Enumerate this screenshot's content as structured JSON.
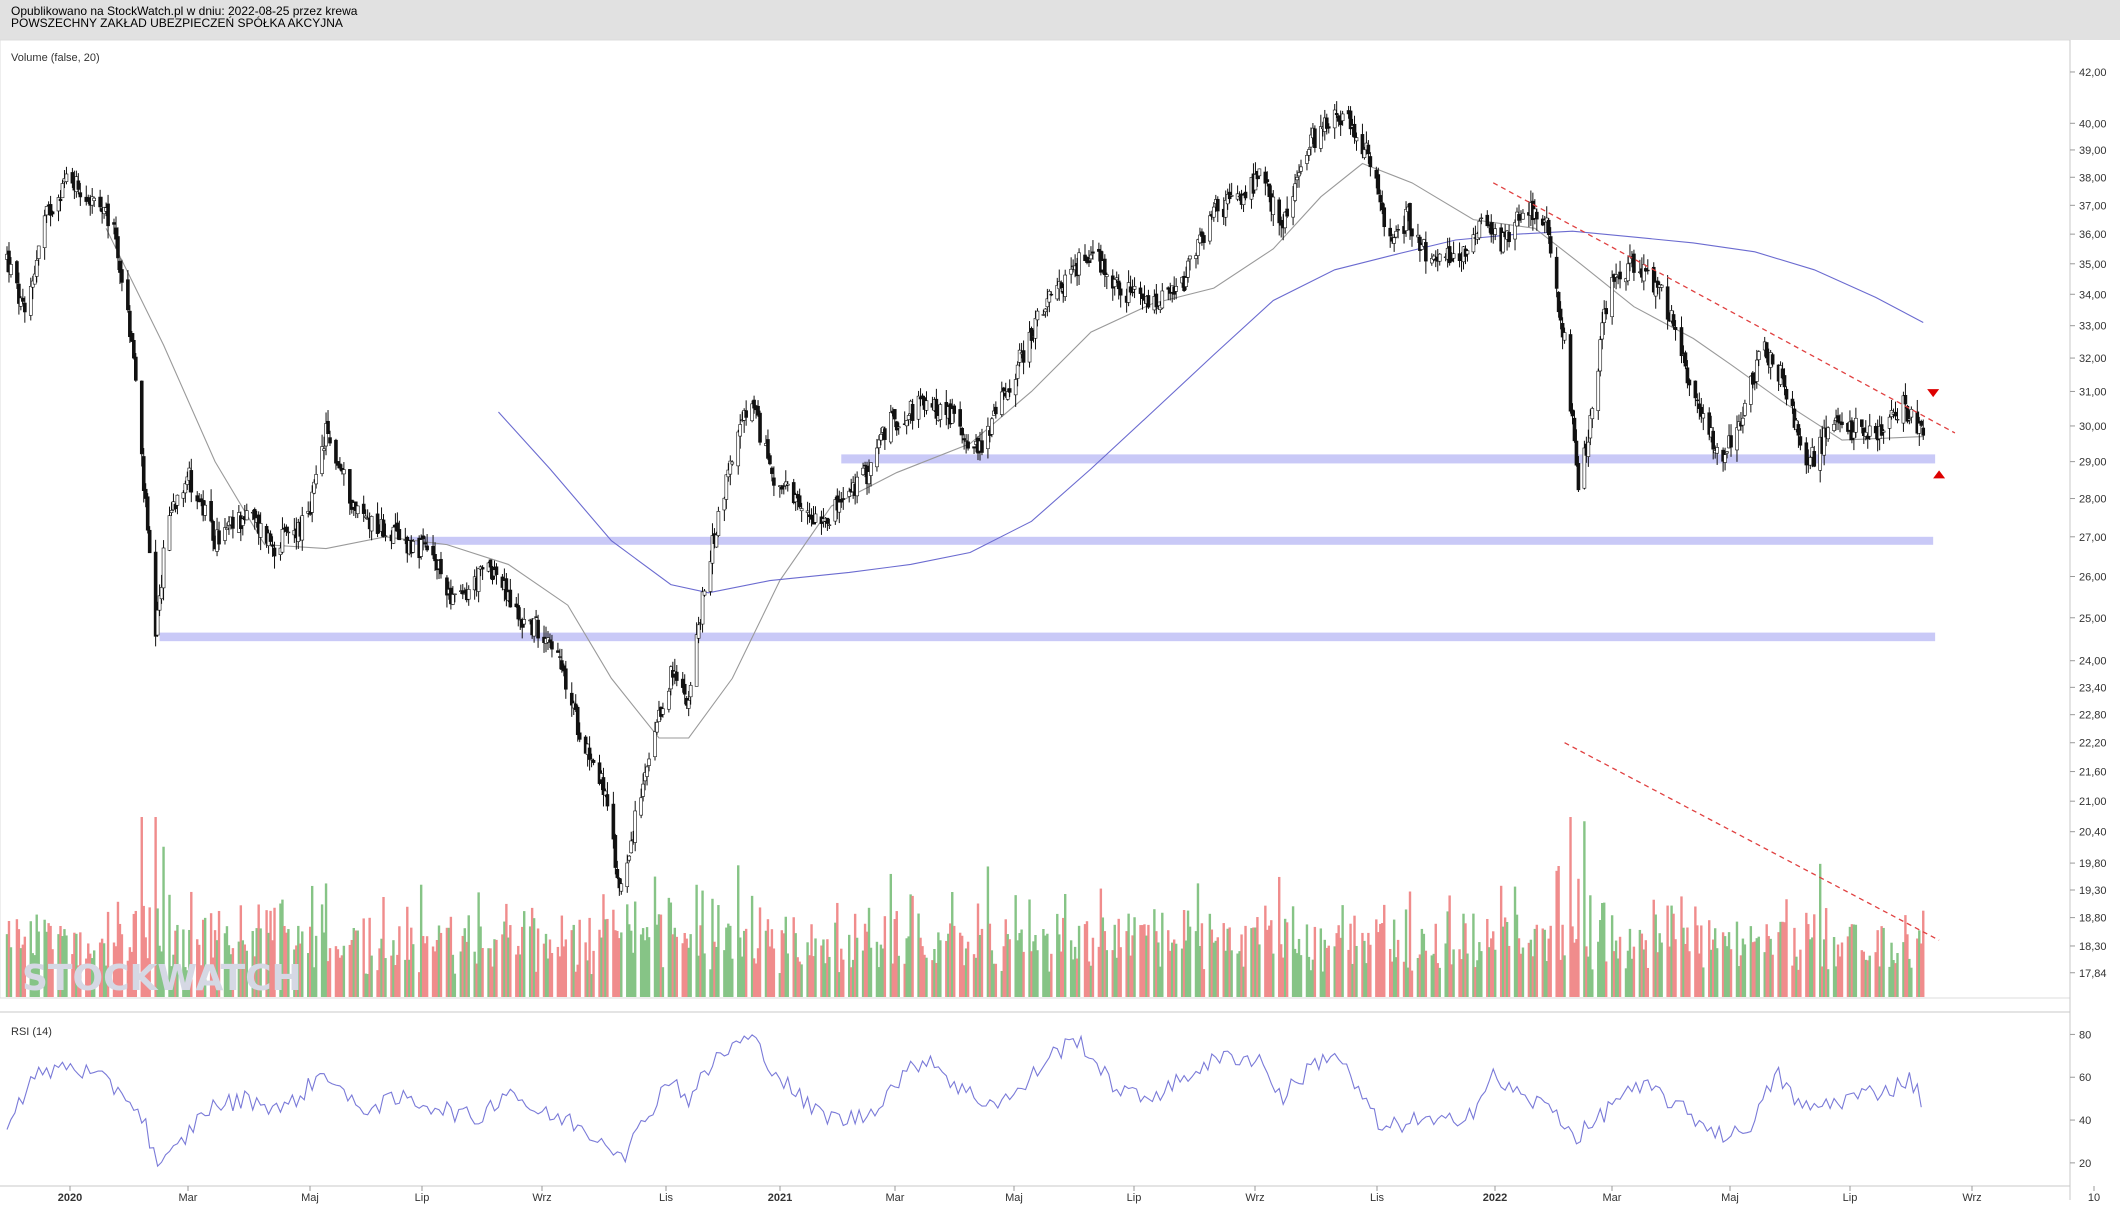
{
  "header": {
    "line1": "Opublikowano na StockWatch.pl w dniu: 2022-08-25 przez krewa",
    "line2": "POWSZECHNY ZAKŁAD UBEZPIECZEŃ SPÓŁKA AKCYJNA"
  },
  "watermark": "STOCKWATCH",
  "chart_data": [
    {
      "type": "candlestick",
      "legend_label": "Volume (false, 20)",
      "y_scale": "log",
      "ylim": [
        17.6,
        42.4
      ],
      "y_ticks": [
        "42,00",
        "40,00",
        "39,00",
        "38,00",
        "37,00",
        "36,00",
        "35,00",
        "34,00",
        "33,00",
        "32,00",
        "31,00",
        "30,00",
        "29,00",
        "28,00",
        "27,00",
        "26,00",
        "25,00",
        "24,00",
        "23,40",
        "22,80",
        "22,20",
        "21,60",
        "21,00",
        "20,40",
        "19,80",
        "19,30",
        "18,80",
        "18,30",
        "17,84"
      ],
      "x_ticks": [
        "2020",
        "Mar",
        "Maj",
        "Lip",
        "Wrz",
        "Lis",
        "2021",
        "Mar",
        "Maj",
        "Lip",
        "Wrz",
        "Lis",
        "2022",
        "Mar",
        "Maj",
        "Lip",
        "Wrz",
        "10"
      ],
      "price_path": [
        [
          "2020-01-01",
          35.2
        ],
        [
          "2020-01-10",
          33.2
        ],
        [
          "2020-01-20",
          36.5
        ],
        [
          "2020-02-01",
          38.1
        ],
        [
          "2020-02-12",
          37.2
        ],
        [
          "2020-02-24",
          36.2
        ],
        [
          "2020-03-05",
          32.0
        ],
        [
          "2020-03-08",
          29.7
        ],
        [
          "2020-03-16",
          24.4
        ],
        [
          "2020-03-22",
          27.5
        ],
        [
          "2020-04-01",
          28.7
        ],
        [
          "2020-04-15",
          26.9
        ],
        [
          "2020-05-01",
          27.6
        ],
        [
          "2020-05-15",
          26.8
        ],
        [
          "2020-06-01",
          27.4
        ],
        [
          "2020-06-10",
          29.8
        ],
        [
          "2020-06-25",
          27.7
        ],
        [
          "2020-07-15",
          27.0
        ],
        [
          "2020-08-01",
          26.6
        ],
        [
          "2020-08-15",
          25.3
        ],
        [
          "2020-09-01",
          26.3
        ],
        [
          "2020-09-15",
          25.0
        ],
        [
          "2020-10-01",
          24.6
        ],
        [
          "2020-10-15",
          22.6
        ],
        [
          "2020-10-28",
          21.3
        ],
        [
          "2020-11-05",
          19.3
        ],
        [
          "2020-11-15",
          20.9
        ],
        [
          "2020-12-01",
          23.7
        ],
        [
          "2020-12-10",
          23.2
        ],
        [
          "2020-12-20",
          26.3
        ],
        [
          "2021-01-01",
          29.2
        ],
        [
          "2021-01-10",
          30.7
        ],
        [
          "2021-01-22",
          28.6
        ],
        [
          "2021-02-05",
          27.6
        ],
        [
          "2021-02-20",
          27.6
        ],
        [
          "2021-03-01",
          28.1
        ],
        [
          "2021-03-10",
          28.7
        ],
        [
          "2021-03-20",
          30.0
        ],
        [
          "2021-04-05",
          30.6
        ],
        [
          "2021-04-20",
          30.4
        ],
        [
          "2021-05-05",
          29.3
        ],
        [
          "2021-05-20",
          31.1
        ],
        [
          "2021-06-05",
          33.3
        ],
        [
          "2021-06-20",
          34.6
        ],
        [
          "2021-07-01",
          35.5
        ],
        [
          "2021-07-15",
          34.2
        ],
        [
          "2021-08-01",
          33.6
        ],
        [
          "2021-08-15",
          34.1
        ],
        [
          "2021-09-01",
          36.8
        ],
        [
          "2021-09-15",
          37.3
        ],
        [
          "2021-09-25",
          38.0
        ],
        [
          "2021-10-05",
          36.2
        ],
        [
          "2021-10-20",
          39.3
        ],
        [
          "2021-11-01",
          40.5
        ],
        [
          "2021-11-10",
          39.9
        ],
        [
          "2021-11-20",
          38.4
        ],
        [
          "2021-11-28",
          35.6
        ],
        [
          "2021-12-08",
          36.6
        ],
        [
          "2021-12-20",
          35.0
        ],
        [
          "2022-01-05",
          35.4
        ],
        [
          "2022-01-15",
          36.6
        ],
        [
          "2022-01-25",
          35.7
        ],
        [
          "2022-02-05",
          37.1
        ],
        [
          "2022-02-15",
          36.6
        ],
        [
          "2022-02-25",
          32.5
        ],
        [
          "2022-03-04",
          28.1
        ],
        [
          "2022-03-10",
          30.1
        ],
        [
          "2022-03-20",
          34.5
        ],
        [
          "2022-04-01",
          35.0
        ],
        [
          "2022-04-15",
          34.1
        ],
        [
          "2022-05-01",
          31.0
        ],
        [
          "2022-05-15",
          29.1
        ],
        [
          "2022-05-25",
          30.1
        ],
        [
          "2022-06-05",
          32.4
        ],
        [
          "2022-06-15",
          31.4
        ],
        [
          "2022-06-28",
          28.9
        ],
        [
          "2022-07-10",
          30.0
        ],
        [
          "2022-07-25",
          29.9
        ],
        [
          "2022-08-05",
          29.8
        ],
        [
          "2022-08-15",
          30.6
        ],
        [
          "2022-08-25",
          29.7
        ]
      ],
      "moving_averages": [
        {
          "color": "#9a9a9a",
          "path": [
            [
              "2020-02-20",
              36.2
            ],
            [
              "2020-03-20",
              32.4
            ],
            [
              "2020-04-15",
              29.0
            ],
            [
              "2020-05-10",
              26.8
            ],
            [
              "2020-06-10",
              26.7
            ],
            [
              "2020-07-10",
              27.0
            ],
            [
              "2020-08-10",
              26.8
            ],
            [
              "2020-09-10",
              26.3
            ],
            [
              "2020-10-10",
              25.3
            ],
            [
              "2020-11-01",
              23.6
            ],
            [
              "2020-11-25",
              22.3
            ],
            [
              "2020-12-10",
              22.3
            ],
            [
              "2021-01-01",
              23.6
            ],
            [
              "2021-01-25",
              25.9
            ],
            [
              "2021-02-20",
              27.8
            ],
            [
              "2021-03-25",
              28.7
            ],
            [
              "2021-05-01",
              29.5
            ],
            [
              "2021-06-01",
              31.0
            ],
            [
              "2021-07-01",
              32.8
            ],
            [
              "2021-08-01",
              33.7
            ],
            [
              "2021-09-01",
              34.2
            ],
            [
              "2021-10-01",
              35.5
            ],
            [
              "2021-10-25",
              37.3
            ],
            [
              "2021-11-15",
              38.5
            ],
            [
              "2021-12-10",
              37.8
            ],
            [
              "2022-01-10",
              36.5
            ],
            [
              "2022-02-10",
              36.2
            ],
            [
              "2022-03-05",
              35.0
            ],
            [
              "2022-04-01",
              33.6
            ],
            [
              "2022-05-01",
              32.6
            ],
            [
              "2022-05-20",
              31.8
            ],
            [
              "2022-06-15",
              30.7
            ],
            [
              "2022-07-15",
              29.6
            ],
            [
              "2022-08-25",
              29.7
            ]
          ]
        },
        {
          "color": "#6b6bd0",
          "path": [
            [
              "2020-09-05",
              30.4
            ],
            [
              "2020-10-01",
              28.8
            ],
            [
              "2020-11-01",
              26.9
            ],
            [
              "2020-12-01",
              25.8
            ],
            [
              "2020-12-20",
              25.6
            ],
            [
              "2021-01-20",
              25.9
            ],
            [
              "2021-03-01",
              26.1
            ],
            [
              "2021-04-01",
              26.3
            ],
            [
              "2021-05-01",
              26.6
            ],
            [
              "2021-06-01",
              27.4
            ],
            [
              "2021-07-01",
              28.8
            ],
            [
              "2021-08-01",
              30.4
            ],
            [
              "2021-09-01",
              32.1
            ],
            [
              "2021-10-01",
              33.8
            ],
            [
              "2021-11-01",
              34.8
            ],
            [
              "2021-12-01",
              35.3
            ],
            [
              "2022-01-01",
              35.8
            ],
            [
              "2022-02-01",
              36.0
            ],
            [
              "2022-03-01",
              36.1
            ],
            [
              "2022-04-01",
              35.9
            ],
            [
              "2022-05-01",
              35.7
            ],
            [
              "2022-06-01",
              35.4
            ],
            [
              "2022-07-01",
              34.8
            ],
            [
              "2022-08-01",
              33.9
            ],
            [
              "2022-08-25",
              33.1
            ]
          ]
        }
      ],
      "support_zones": [
        {
          "start": "2021-02-25",
          "end": "2022-08-31",
          "low": 28.95,
          "high": 29.2
        },
        {
          "start": "2020-07-20",
          "end": "2022-08-30",
          "low": 26.85,
          "high": 27.0
        },
        {
          "start": "2020-03-18",
          "end": "2022-08-31",
          "low": 24.45,
          "high": 24.65
        }
      ],
      "trend_line": {
        "start": [
          "2022-01-20",
          37.8
        ],
        "end": [
          "2022-09-10",
          29.8
        ],
        "color": "#e04040",
        "style": "dashed"
      },
      "markers": [
        {
          "date": "2022-08-30",
          "value": 30.95,
          "direction": "down",
          "color": "#dd0000"
        },
        {
          "date": "2022-09-02",
          "value": 28.65,
          "direction": "up",
          "color": "#dd0000"
        }
      ]
    },
    {
      "type": "bar",
      "name": "Volume",
      "colors": {
        "up": "#86c486",
        "down": "#f08c8c"
      },
      "trend_line": {
        "start": [
          "2022-02-25",
          22.2
        ],
        "end": [
          "2022-09-02",
          18.4
        ],
        "color": "#e04040",
        "style": "dashed"
      }
    },
    {
      "type": "line",
      "legend_label": "RSI (14)",
      "ylim": [
        12,
        83
      ],
      "y_ticks": [
        80,
        60,
        40,
        20
      ],
      "color": "#7a7ad8",
      "path": [
        [
          "2020-01-01",
          40
        ],
        [
          "2020-01-15",
          60
        ],
        [
          "2020-02-01",
          66
        ],
        [
          "2020-02-15",
          60
        ],
        [
          "2020-03-01",
          52
        ],
        [
          "2020-03-10",
          40
        ],
        [
          "2020-03-18",
          17
        ],
        [
          "2020-03-28",
          28
        ],
        [
          "2020-04-10",
          45
        ],
        [
          "2020-05-01",
          50
        ],
        [
          "2020-05-20",
          45
        ],
        [
          "2020-06-10",
          63
        ],
        [
          "2020-06-25",
          45
        ],
        [
          "2020-07-20",
          50
        ],
        [
          "2020-08-10",
          45
        ],
        [
          "2020-08-25",
          40
        ],
        [
          "2020-09-10",
          55
        ],
        [
          "2020-09-25",
          43
        ],
        [
          "2020-10-10",
          40
        ],
        [
          "2020-10-25",
          32
        ],
        [
          "2020-11-08",
          25
        ],
        [
          "2020-11-15",
          35
        ],
        [
          "2020-11-30",
          60
        ],
        [
          "2020-12-10",
          50
        ],
        [
          "2020-12-25",
          70
        ],
        [
          "2021-01-10",
          79
        ],
        [
          "2021-01-25",
          60
        ],
        [
          "2021-02-10",
          45
        ],
        [
          "2021-02-25",
          40
        ],
        [
          "2021-03-10",
          42
        ],
        [
          "2021-03-25",
          58
        ],
        [
          "2021-04-10",
          70
        ],
        [
          "2021-04-25",
          55
        ],
        [
          "2021-05-10",
          48
        ],
        [
          "2021-05-25",
          52
        ],
        [
          "2021-06-10",
          70
        ],
        [
          "2021-06-25",
          78
        ],
        [
          "2021-07-10",
          58
        ],
        [
          "2021-07-25",
          50
        ],
        [
          "2021-08-10",
          55
        ],
        [
          "2021-08-25",
          65
        ],
        [
          "2021-09-10",
          70
        ],
        [
          "2021-09-25",
          68
        ],
        [
          "2021-10-05",
          50
        ],
        [
          "2021-10-20",
          65
        ],
        [
          "2021-11-01",
          72
        ],
        [
          "2021-11-12",
          55
        ],
        [
          "2021-11-25",
          35
        ],
        [
          "2021-12-10",
          40
        ],
        [
          "2021-12-25",
          38
        ],
        [
          "2022-01-10",
          45
        ],
        [
          "2022-01-20",
          60
        ],
        [
          "2022-02-05",
          50
        ],
        [
          "2022-02-20",
          45
        ],
        [
          "2022-03-02",
          32
        ],
        [
          "2022-03-12",
          38
        ],
        [
          "2022-03-25",
          52
        ],
        [
          "2022-04-10",
          55
        ],
        [
          "2022-04-25",
          45
        ],
        [
          "2022-05-10",
          36
        ],
        [
          "2022-05-20",
          32
        ],
        [
          "2022-06-01",
          40
        ],
        [
          "2022-06-12",
          62
        ],
        [
          "2022-06-25",
          45
        ],
        [
          "2022-07-10",
          48
        ],
        [
          "2022-07-25",
          52
        ],
        [
          "2022-08-10",
          55
        ],
        [
          "2022-08-18",
          60
        ],
        [
          "2022-08-25",
          48
        ]
      ]
    }
  ]
}
